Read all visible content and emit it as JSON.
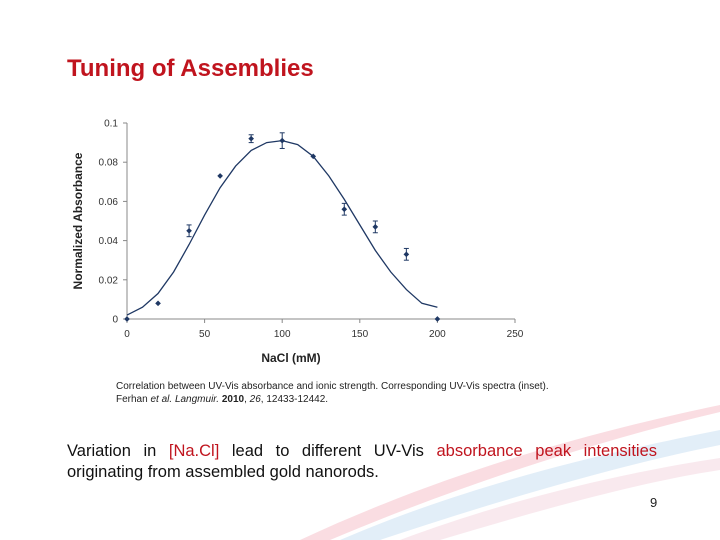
{
  "slide": {
    "title": "Tuning of Assemblies",
    "page_number": "9"
  },
  "caption": {
    "line1": "Correlation between UV-Vis absorbance and ionic strength. Corresponding UV-Vis spectra (inset).",
    "author": "Ferhan ",
    "etal": "et al.",
    "journal": "Langmuir.",
    "year": "2010",
    "volume": "26",
    "pages": "12433-12442."
  },
  "body": {
    "part1": "Variation in ",
    "hl1": "[Na.Cl]",
    "part2": " lead to different UV-Vis ",
    "hl2": "absorbance peak intensities",
    "part3": " originating from assembled gold nanorods."
  },
  "colors": {
    "title": "#c0141e",
    "highlight": "#c0141e",
    "curve": "#1f3864",
    "points": "#1f3864"
  },
  "chart_data": {
    "type": "scatter",
    "title": "",
    "xlabel": "NaCl (mM)",
    "ylabel": "Normalized Absorbance",
    "xlim": [
      0,
      250
    ],
    "ylim": [
      0,
      0.1
    ],
    "x_ticks": [
      "0",
      "50",
      "100",
      "150",
      "200",
      "250"
    ],
    "y_ticks": [
      "0",
      "0.02",
      "0.04",
      "0.06",
      "0.08",
      "0.1"
    ],
    "grid": false,
    "series": [
      {
        "x": [
          0,
          20,
          40,
          60,
          80,
          100,
          120,
          140,
          160,
          180,
          200
        ],
        "y": [
          0,
          0.008,
          0.045,
          0.073,
          0.092,
          0.091,
          0.083,
          0.056,
          0.047,
          0.033,
          0
        ],
        "err": [
          0,
          0,
          0.003,
          0,
          0.002,
          0.004,
          0,
          0.003,
          0.003,
          0.003,
          0
        ]
      }
    ],
    "fit_curve": {
      "x": [
        0,
        10,
        20,
        30,
        40,
        50,
        60,
        70,
        80,
        90,
        100,
        110,
        120,
        130,
        140,
        150,
        160,
        170,
        180,
        190,
        200
      ],
      "y": [
        0.002,
        0.006,
        0.013,
        0.024,
        0.038,
        0.053,
        0.067,
        0.078,
        0.086,
        0.09,
        0.091,
        0.089,
        0.083,
        0.073,
        0.061,
        0.048,
        0.035,
        0.024,
        0.015,
        0.008,
        0.006
      ]
    }
  }
}
